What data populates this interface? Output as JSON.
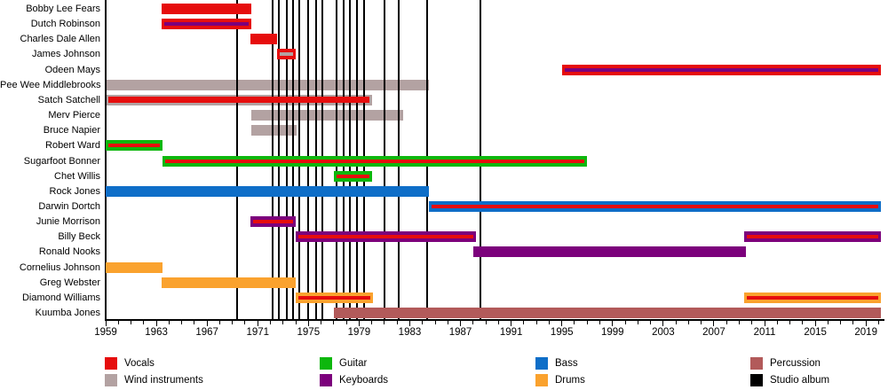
{
  "chart_data": {
    "type": "timeline",
    "description": "Band members timeline with studio album release markers",
    "x_axis": {
      "start": 1959,
      "end": 2020.4,
      "minor_tick_interval": 1,
      "major_tick_interval": 4,
      "tick_labels": [
        "1959",
        "1963",
        "1967",
        "1971",
        "1975",
        "1979",
        "1983",
        "1987",
        "1991",
        "1995",
        "1999",
        "2003",
        "2007",
        "2011",
        "2015",
        "2019"
      ]
    },
    "colors": {
      "vocals": "#e60d0d",
      "wind": "#b3a2a2",
      "guitar": "#0db70d",
      "keyboards": "#7c017c",
      "bass": "#0e6ec8",
      "drums": "#faa22e",
      "percussion": "#b25a5a",
      "album": "#000000"
    },
    "legend": [
      {
        "label": "Vocals",
        "color_key": "vocals"
      },
      {
        "label": "Wind instruments",
        "color_key": "wind"
      },
      {
        "label": "Guitar",
        "color_key": "guitar"
      },
      {
        "label": "Keyboards",
        "color_key": "keyboards"
      },
      {
        "label": "Bass",
        "color_key": "bass"
      },
      {
        "label": "Drums",
        "color_key": "drums"
      },
      {
        "label": "Percussion",
        "color_key": "percussion"
      },
      {
        "label": "Studio album",
        "color_key": "album"
      }
    ],
    "album_lines_years": [
      1969.4,
      1972.2,
      1972.7,
      1973.3,
      1973.8,
      1974.3,
      1975.0,
      1975.6,
      1976.1,
      1977.2,
      1977.8,
      1978.3,
      1978.8,
      1979.4,
      1981.0,
      1982.1,
      1984.4,
      1988.6
    ],
    "members": [
      {
        "name": "Bobby Lee Fears",
        "main": "vocals",
        "stripe": null,
        "segments": [
          [
            1963.4,
            1970.5
          ]
        ]
      },
      {
        "name": "Dutch Robinson",
        "main": "vocals",
        "stripe": "keyboards",
        "segments": [
          [
            1963.4,
            1970.5
          ]
        ]
      },
      {
        "name": "Charles Dale Allen",
        "main": "vocals",
        "stripe": null,
        "segments": [
          [
            1970.4,
            1972.5
          ]
        ]
      },
      {
        "name": "James Johnson",
        "main": "vocals",
        "stripe": "wind",
        "segments": [
          [
            1972.5,
            1974.0
          ]
        ]
      },
      {
        "name": "Odeen Mays",
        "main": "vocals",
        "stripe": "keyboards",
        "segments": [
          [
            1995.0,
            2020.2
          ]
        ]
      },
      {
        "name": "Pee Wee Middlebrooks",
        "main": "wind",
        "stripe": null,
        "segments": [
          [
            1959.0,
            1984.5
          ]
        ]
      },
      {
        "name": "Satch Satchell",
        "main": "wind",
        "stripe": "vocals",
        "stripe_height": 7,
        "segments": [
          [
            1959.0,
            1980.0
          ]
        ]
      },
      {
        "name": "Merv Pierce",
        "main": "wind",
        "stripe": null,
        "segments": [
          [
            1970.5,
            1982.5
          ]
        ]
      },
      {
        "name": "Bruce Napier",
        "main": "wind",
        "stripe": null,
        "segments": [
          [
            1970.5,
            1974.1
          ]
        ]
      },
      {
        "name": "Robert Ward",
        "main": "guitar",
        "stripe": "vocals",
        "segments": [
          [
            1959.0,
            1963.5
          ]
        ]
      },
      {
        "name": "Sugarfoot Bonner",
        "main": "guitar",
        "stripe": "vocals",
        "segments": [
          [
            1963.5,
            1997.0
          ]
        ]
      },
      {
        "name": "Chet Willis",
        "main": "guitar",
        "stripe": "vocals",
        "segments": [
          [
            1977.0,
            1980.0
          ]
        ]
      },
      {
        "name": "Rock Jones",
        "main": "bass",
        "stripe": null,
        "segments": [
          [
            1959.0,
            1984.5
          ]
        ]
      },
      {
        "name": "Darwin Dortch",
        "main": "bass",
        "stripe": "vocals",
        "segments": [
          [
            1984.5,
            2020.2
          ]
        ]
      },
      {
        "name": "Junie Morrison",
        "main": "keyboards",
        "stripe": "vocals",
        "segments": [
          [
            1970.4,
            1974.0
          ]
        ]
      },
      {
        "name": "Billy Beck",
        "main": "keyboards",
        "stripe": "vocals",
        "segments": [
          [
            1974.0,
            1988.2
          ],
          [
            2009.4,
            2020.2
          ]
        ]
      },
      {
        "name": "Ronald Nooks",
        "main": "keyboards",
        "stripe": null,
        "segments": [
          [
            1988.0,
            2009.5
          ]
        ]
      },
      {
        "name": "Cornelius Johnson",
        "main": "drums",
        "stripe": null,
        "segments": [
          [
            1959.0,
            1963.5
          ]
        ]
      },
      {
        "name": "Greg Webster",
        "main": "drums",
        "stripe": null,
        "segments": [
          [
            1963.4,
            1974.0
          ]
        ]
      },
      {
        "name": "Diamond Williams",
        "main": "drums",
        "stripe": "vocals",
        "segments": [
          [
            1974.0,
            1980.1
          ],
          [
            2009.4,
            2020.2
          ]
        ]
      },
      {
        "name": "Kuumba Jones",
        "main": "percussion",
        "stripe": null,
        "segments": [
          [
            1977.0,
            2020.2
          ]
        ]
      }
    ]
  }
}
